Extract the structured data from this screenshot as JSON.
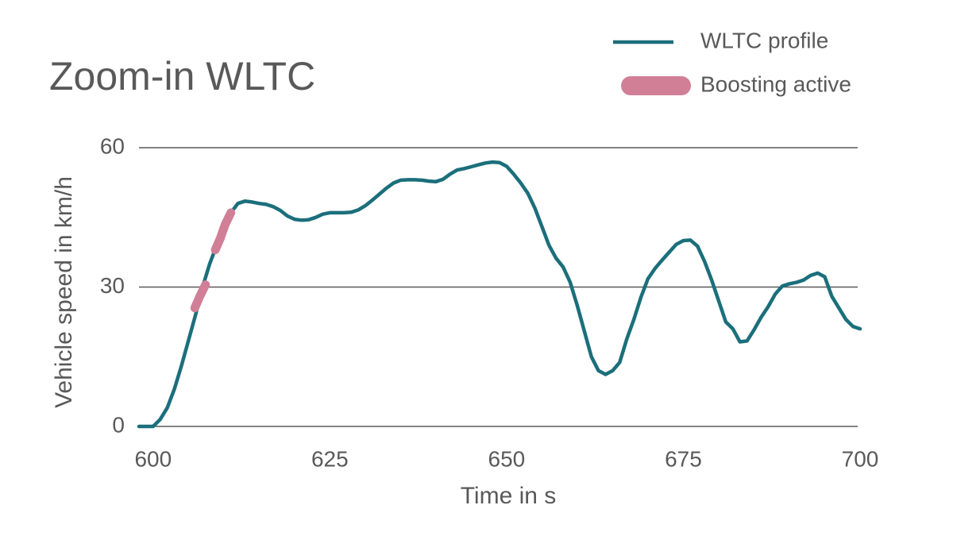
{
  "chart_data": {
    "type": "line",
    "title": "Zoom-in WLTC",
    "x_label": "Time in s",
    "y_label": "Vehicle speed in km/h",
    "xlim": [
      598,
      700
    ],
    "ylim": [
      0,
      60
    ],
    "xticks": [
      600,
      625,
      650,
      675,
      700
    ],
    "yticks": [
      0,
      30,
      60
    ],
    "grid": true,
    "legend": "top-right",
    "series": [
      {
        "name": "WLTC profile",
        "color": "#1b6f7b",
        "x": [
          598,
          600,
          601,
          602,
          603,
          604,
          605,
          606,
          607,
          608,
          609,
          610,
          611,
          612,
          613,
          614,
          615,
          616,
          617,
          618,
          619,
          620,
          621,
          622,
          623,
          624,
          625,
          626,
          627,
          628,
          629,
          630,
          631,
          632,
          633,
          634,
          635,
          636,
          637,
          638,
          639,
          640,
          641,
          642,
          643,
          644,
          645,
          646,
          647,
          648,
          649,
          650,
          651,
          652,
          653,
          654,
          655,
          656,
          657,
          658,
          659,
          660,
          661,
          662,
          663,
          664,
          665,
          666,
          667,
          668,
          669,
          670,
          671,
          672,
          673,
          674,
          675,
          676,
          677,
          678,
          679,
          680,
          681,
          682,
          683,
          684,
          685,
          686,
          687,
          688,
          689,
          690,
          691,
          692,
          693,
          694,
          695,
          696,
          697,
          698,
          699,
          700
        ],
        "values": [
          0,
          0,
          1.5,
          4,
          8,
          13,
          18.5,
          24,
          30,
          35,
          39,
          43,
          46,
          48,
          48.5,
          48.3,
          48,
          47.8,
          47.3,
          46.5,
          45.3,
          44.6,
          44.4,
          44.5,
          45,
          45.7,
          46,
          46,
          46,
          46.1,
          46.6,
          47.5,
          48.7,
          50,
          51.3,
          52.4,
          53,
          53.1,
          53.1,
          53,
          52.8,
          52.7,
          53.2,
          54.3,
          55.2,
          55.5,
          55.9,
          56.3,
          56.7,
          56.9,
          56.8,
          56,
          54.3,
          52.4,
          50.2,
          47,
          43,
          39,
          36.2,
          34.3,
          31,
          26,
          20.5,
          15,
          12,
          11.2,
          12,
          13.8,
          18.8,
          23,
          27.8,
          31.8,
          34,
          35.8,
          37.5,
          39.2,
          40,
          40.1,
          38.8,
          35.5,
          31.5,
          27,
          22.5,
          21,
          18.2,
          18.4,
          20.8,
          23.5,
          25.8,
          28.5,
          30.2,
          30.7,
          31,
          31.5,
          32.5,
          33,
          32.2,
          28,
          25.5,
          23,
          21.5,
          21
        ]
      },
      {
        "name": "Boosting active",
        "color": "#d07f96",
        "x": [
          605.9,
          606.6,
          607.4,
          607.5,
          608.8,
          609.5,
          610.2,
          611
        ],
        "values": [
          25.5,
          28,
          30.5,
          null,
          38,
          40.5,
          43.5,
          46
        ]
      }
    ]
  }
}
